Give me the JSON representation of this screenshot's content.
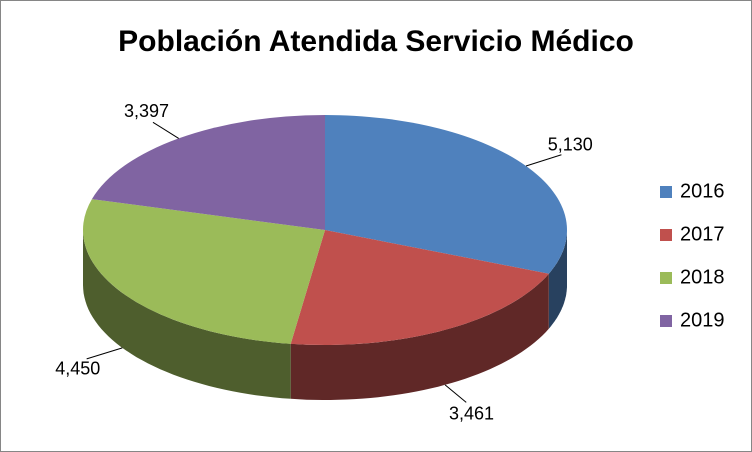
{
  "chart_data": {
    "type": "pie3d",
    "title": "Población Atendida Servicio Médico",
    "categories": [
      "2016",
      "2017",
      "2018",
      "2019"
    ],
    "values": [
      5130,
      3461,
      4450,
      3397
    ],
    "value_labels": [
      "5,130",
      "3,461",
      "4,450",
      "3,397"
    ],
    "colors": [
      "#4f81bd",
      "#c0504d",
      "#9bbb59",
      "#8064a2"
    ],
    "legend": "right"
  }
}
